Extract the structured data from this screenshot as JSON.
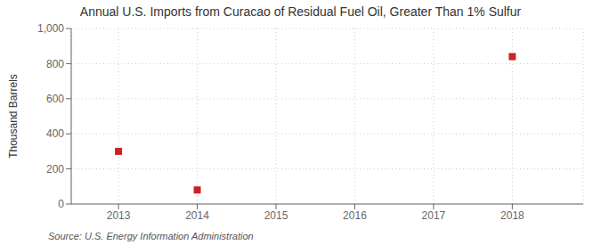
{
  "chart_data": {
    "type": "scatter",
    "title": "Annual U.S. Imports from Curacao of Residual Fuel Oil, Greater Than 1% Sulfur",
    "ylabel": "Thousand Barrels",
    "annotation": "Source: U.S. Energy Information Administration",
    "x": [
      2013,
      2014,
      2015,
      2016,
      2017,
      2018
    ],
    "values": [
      300,
      80,
      null,
      null,
      null,
      840
    ],
    "color": "#cc2222",
    "marker": "square",
    "xlim": [
      2012.4,
      2018.9
    ],
    "xticks": [
      2013,
      2014,
      2015,
      2016,
      2017,
      2018
    ],
    "ylim": [
      0,
      1000
    ],
    "yticks": [
      0,
      200,
      400,
      600,
      800,
      {
        "value": 1000,
        "label": "1,000"
      }
    ],
    "grid": true
  }
}
